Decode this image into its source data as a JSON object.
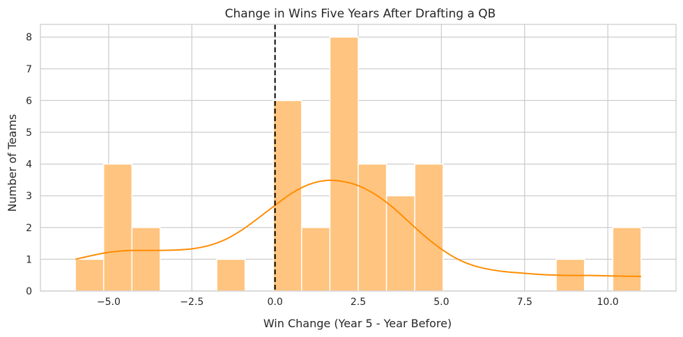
{
  "chart_data": {
    "type": "histogram",
    "title": "Change in Wins Five Years After Drafting a QB",
    "xlabel": "Win Change (Year 5 - Year Before)",
    "ylabel": "Number of Teams",
    "xlim": [
      -7.05,
      12.05
    ],
    "ylim": [
      0,
      8.4
    ],
    "x_ticks": [
      -5.0,
      -2.5,
      0.0,
      2.5,
      5.0,
      7.5,
      10.0
    ],
    "x_tick_labels": [
      "−5.0",
      "−2.5",
      "0.0",
      "2.5",
      "5.0",
      "7.5",
      "10.0"
    ],
    "y_ticks": [
      0,
      1,
      2,
      3,
      4,
      5,
      6,
      7,
      8
    ],
    "y_tick_labels": [
      "0",
      "1",
      "2",
      "3",
      "4",
      "5",
      "6",
      "7",
      "8"
    ],
    "bins": [
      {
        "x0": -6.0,
        "x1": -5.15,
        "count": 1
      },
      {
        "x0": -5.15,
        "x1": -4.3,
        "count": 4
      },
      {
        "x0": -4.3,
        "x1": -3.45,
        "count": 2
      },
      {
        "x0": -3.45,
        "x1": -2.6,
        "count": 0
      },
      {
        "x0": -2.6,
        "x1": -1.75,
        "count": 0
      },
      {
        "x0": -1.75,
        "x1": -0.9,
        "count": 1
      },
      {
        "x0": -0.9,
        "x1": -0.05,
        "count": 0
      },
      {
        "x0": -0.05,
        "x1": 0.8,
        "count": 6
      },
      {
        "x0": 0.8,
        "x1": 1.65,
        "count": 2
      },
      {
        "x0": 1.65,
        "x1": 2.5,
        "count": 8
      },
      {
        "x0": 2.5,
        "x1": 3.35,
        "count": 4
      },
      {
        "x0": 3.35,
        "x1": 4.2,
        "count": 3
      },
      {
        "x0": 4.2,
        "x1": 5.05,
        "count": 4
      },
      {
        "x0": 5.05,
        "x1": 5.9,
        "count": 0
      },
      {
        "x0": 5.9,
        "x1": 6.75,
        "count": 0
      },
      {
        "x0": 6.75,
        "x1": 7.6,
        "count": 0
      },
      {
        "x0": 7.6,
        "x1": 8.45,
        "count": 0
      },
      {
        "x0": 8.45,
        "x1": 9.3,
        "count": 1
      },
      {
        "x0": 9.3,
        "x1": 10.15,
        "count": 0
      },
      {
        "x0": 10.15,
        "x1": 11.0,
        "count": 2
      }
    ],
    "kde": {
      "x": [
        -6.0,
        -5.5,
        -5.0,
        -4.5,
        -4.0,
        -3.5,
        -3.0,
        -2.5,
        -2.0,
        -1.5,
        -1.0,
        -0.5,
        0.0,
        0.5,
        1.0,
        1.5,
        2.0,
        2.5,
        3.0,
        3.5,
        4.0,
        4.5,
        5.0,
        5.5,
        6.0,
        6.5,
        7.0,
        7.5,
        8.0,
        8.5,
        9.0,
        9.5,
        10.0,
        10.5,
        11.0
      ],
      "y": [
        1.0,
        1.12,
        1.22,
        1.27,
        1.28,
        1.28,
        1.29,
        1.33,
        1.43,
        1.62,
        1.92,
        2.3,
        2.7,
        3.08,
        3.35,
        3.48,
        3.46,
        3.32,
        3.05,
        2.67,
        2.2,
        1.73,
        1.32,
        1.0,
        0.79,
        0.67,
        0.6,
        0.56,
        0.52,
        0.5,
        0.49,
        0.49,
        0.48,
        0.47,
        0.46
      ]
    },
    "reference_line": {
      "x": 0.0,
      "style": "dashed",
      "color": "#000000"
    },
    "bar_color": "#ffc47f",
    "line_color": "#ff8c00",
    "grid": true
  }
}
